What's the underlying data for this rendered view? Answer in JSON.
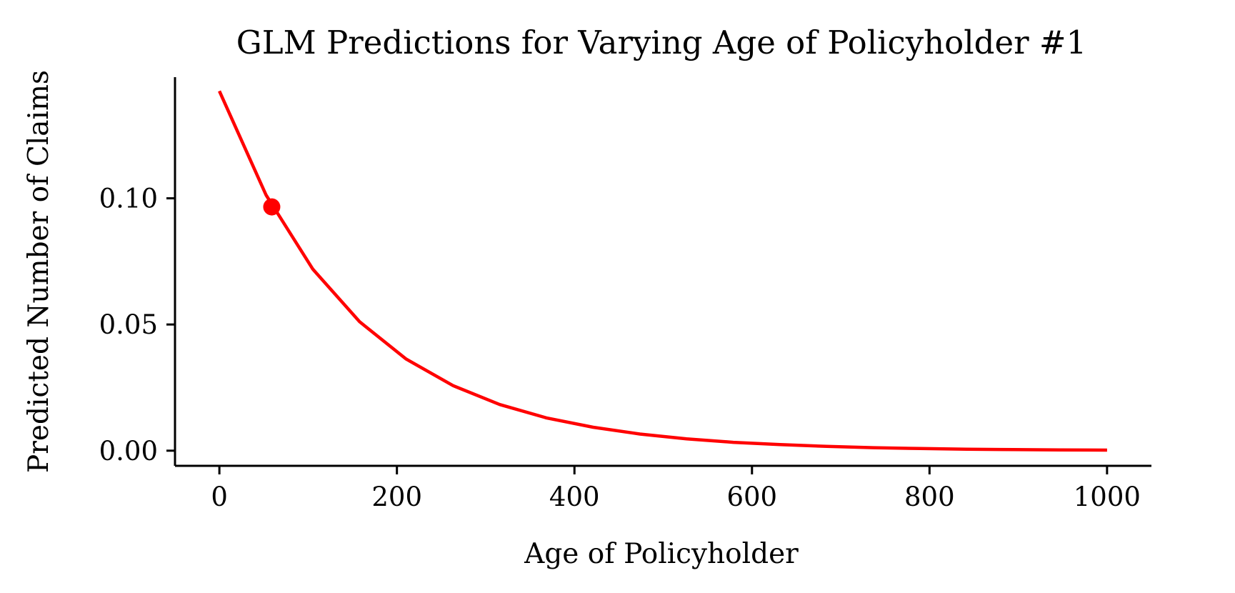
{
  "chart_data": {
    "type": "line",
    "title": "GLM Predictions for Varying Age of Policyholder #1",
    "xlabel": "Age of Policyholder",
    "ylabel": "Predicted Number of Claims",
    "xlim": [
      -50,
      1050
    ],
    "ylim": [
      -0.006,
      0.148
    ],
    "xticks": [
      0,
      200,
      400,
      600,
      800,
      1000
    ],
    "xtick_labels": [
      "0",
      "200",
      "400",
      "600",
      "800",
      "1000"
    ],
    "yticks": [
      0.0,
      0.05,
      0.1
    ],
    "ytick_labels": [
      "0.00",
      "0.05",
      "0.10"
    ],
    "grid": false,
    "colors": {
      "line": "#ff0000",
      "axis": "#000000"
    },
    "series": [
      {
        "x": [
          0,
          52.6,
          105.3,
          157.9,
          210.5,
          263.2,
          315.8,
          368.4,
          421.1,
          473.7,
          526.3,
          578.9,
          631.6,
          684.2,
          736.8,
          789.5,
          842.1,
          894.7,
          947.4,
          1000
        ],
        "values": [
          0.1425,
          0.1013,
          0.0719,
          0.0511,
          0.0363,
          0.0258,
          0.0183,
          0.013,
          0.0093,
          0.0066,
          0.0047,
          0.0033,
          0.0024,
          0.0017,
          0.0012,
          0.00085,
          0.0006,
          0.00043,
          0.00031,
          0.00022
        ]
      }
    ],
    "highlight_point": {
      "x": 59,
      "y": 0.0966
    }
  }
}
